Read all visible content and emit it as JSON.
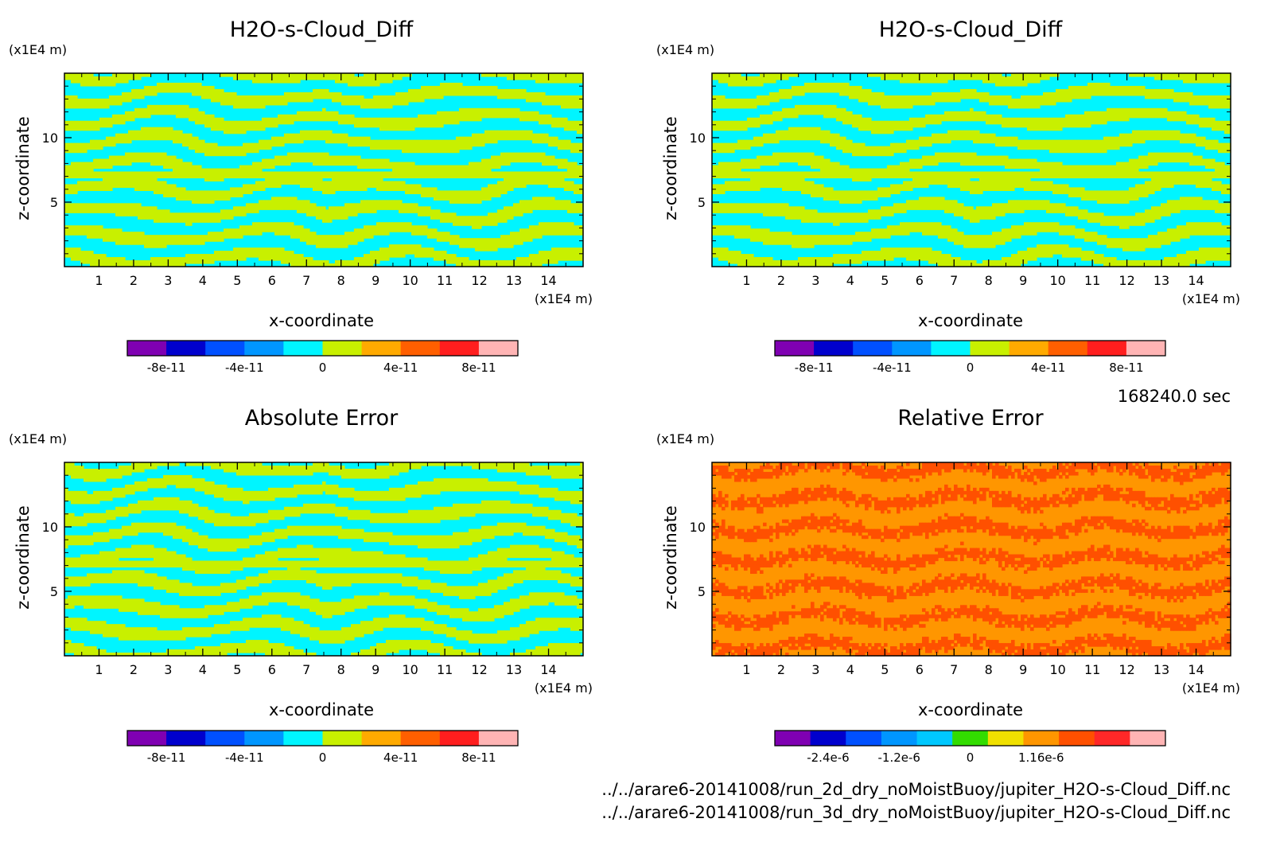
{
  "time_label": "168240.0 sec",
  "file_lines": [
    "../../arare6-20141008/run_2d_dry_noMoistBuoy/jupiter_H2O-s-Cloud_Diff.nc",
    "../../arare6-20141008/run_3d_dry_noMoistBuoy/jupiter_H2O-s-Cloud_Diff.nc"
  ],
  "chart_data": [
    {
      "type": "heatmap",
      "title": "H2O-s-Cloud_Diff",
      "xlabel": "x-coordinate",
      "ylabel": "z-coordinate",
      "x_unit": "(x1E4 m)",
      "y_unit": "(x1E4 m)",
      "xlim": [
        0,
        15
      ],
      "ylim": [
        0,
        15
      ],
      "x_ticks": [
        1,
        2,
        3,
        4,
        5,
        6,
        7,
        8,
        9,
        10,
        11,
        12,
        13,
        14
      ],
      "y_ticks": [
        5,
        10
      ],
      "pattern": "banded",
      "colorbar": {
        "colors": [
          "#7f00b2",
          "#0000cd",
          "#0050ff",
          "#0096ff",
          "#00f5ff",
          "#c8f000",
          "#ffaa00",
          "#ff5f00",
          "#ff1e1e",
          "#ffb4b4"
        ],
        "tick_labels": [
          "-8e-11",
          "-4e-11",
          "0",
          "4e-11",
          "8e-11"
        ],
        "tick_positions": [
          1,
          3,
          5,
          7,
          9
        ]
      },
      "dominant_colors": [
        "#00f5ff",
        "#c8f000"
      ]
    },
    {
      "type": "heatmap",
      "title": "H2O-s-Cloud_Diff",
      "xlabel": "x-coordinate",
      "ylabel": "z-coordinate",
      "x_unit": "(x1E4 m)",
      "y_unit": "(x1E4 m)",
      "xlim": [
        0,
        15
      ],
      "ylim": [
        0,
        15
      ],
      "x_ticks": [
        1,
        2,
        3,
        4,
        5,
        6,
        7,
        8,
        9,
        10,
        11,
        12,
        13,
        14
      ],
      "y_ticks": [
        5,
        10
      ],
      "pattern": "banded",
      "colorbar": {
        "colors": [
          "#7f00b2",
          "#0000cd",
          "#0050ff",
          "#0096ff",
          "#00f5ff",
          "#c8f000",
          "#ffaa00",
          "#ff5f00",
          "#ff1e1e",
          "#ffb4b4"
        ],
        "tick_labels": [
          "-8e-11",
          "-4e-11",
          "0",
          "4e-11",
          "8e-11"
        ],
        "tick_positions": [
          1,
          3,
          5,
          7,
          9
        ]
      },
      "dominant_colors": [
        "#00f5ff",
        "#c8f000"
      ]
    },
    {
      "type": "heatmap",
      "title": "Absolute Error",
      "xlabel": "x-coordinate",
      "ylabel": "z-coordinate",
      "x_unit": "(x1E4 m)",
      "y_unit": "(x1E4 m)",
      "xlim": [
        0,
        15
      ],
      "ylim": [
        0,
        15
      ],
      "x_ticks": [
        1,
        2,
        3,
        4,
        5,
        6,
        7,
        8,
        9,
        10,
        11,
        12,
        13,
        14
      ],
      "y_ticks": [
        5,
        10
      ],
      "pattern": "banded",
      "colorbar": {
        "colors": [
          "#7f00b2",
          "#0000cd",
          "#0050ff",
          "#0096ff",
          "#00f5ff",
          "#c8f000",
          "#ffaa00",
          "#ff5f00",
          "#ff1e1e",
          "#ffb4b4"
        ],
        "tick_labels": [
          "-8e-11",
          "-4e-11",
          "0",
          "4e-11",
          "8e-11"
        ],
        "tick_positions": [
          1,
          3,
          5,
          7,
          9
        ]
      },
      "dominant_colors": [
        "#00f5ff",
        "#c8f000"
      ]
    },
    {
      "type": "heatmap",
      "title": "Relative Error",
      "xlabel": "x-coordinate",
      "ylabel": "z-coordinate",
      "x_unit": "(x1E4 m)",
      "y_unit": "(x1E4 m)",
      "xlim": [
        0,
        15
      ],
      "ylim": [
        0,
        15
      ],
      "x_ticks": [
        1,
        2,
        3,
        4,
        5,
        6,
        7,
        8,
        9,
        10,
        11,
        12,
        13,
        14
      ],
      "y_ticks": [
        5,
        10
      ],
      "pattern": "patchy",
      "colorbar": {
        "colors": [
          "#7f00b2",
          "#0000cd",
          "#0050ff",
          "#0096ff",
          "#00c8ff",
          "#32dc00",
          "#f0e000",
          "#ff9600",
          "#ff5000",
          "#ff2828",
          "#ffb4b4"
        ],
        "tick_labels": [
          "-2.4e-6",
          "-1.2e-6",
          "0",
          "1.16e-6"
        ],
        "tick_positions": [
          1.5,
          3.5,
          5.5,
          7.5
        ]
      },
      "dominant_colors": [
        "#ff9600",
        "#ff5000"
      ]
    }
  ]
}
